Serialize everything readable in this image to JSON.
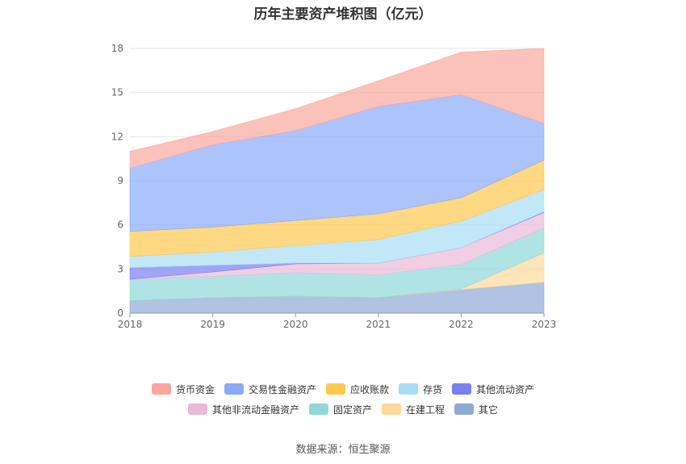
{
  "title": "历年主要资产堆积图（亿元）",
  "source": "数据来源：恒生聚源",
  "chart_data": {
    "type": "area",
    "stacked": true,
    "title": "历年主要资产堆积图（亿元）",
    "categories": [
      "2018",
      "2019",
      "2020",
      "2021",
      "2022",
      "2023"
    ],
    "ylim": [
      0,
      18
    ],
    "yticks": [
      0,
      3,
      6,
      9,
      12,
      15,
      18
    ],
    "grid": true,
    "legend_position": "bottom",
    "series": [
      {
        "name": "其它",
        "color": "#8fa9d6",
        "values": [
          0.85,
          1.05,
          1.15,
          1.05,
          1.6,
          2.1
        ]
      },
      {
        "name": "在建工程",
        "color": "#fdd99b",
        "values": [
          0.0,
          0.0,
          0.0,
          0.0,
          0.05,
          2.0
        ]
      },
      {
        "name": "固定资产",
        "color": "#8ed8d8",
        "values": [
          1.45,
          1.45,
          1.6,
          1.55,
          1.65,
          1.7
        ]
      },
      {
        "name": "其他非流动金融资产",
        "color": "#e9b9d9",
        "values": [
          0.0,
          0.3,
          0.6,
          0.8,
          1.15,
          1.05
        ]
      },
      {
        "name": "其他流动资产",
        "color": "#7b7ef0",
        "values": [
          0.8,
          0.45,
          0.05,
          0.0,
          0.0,
          0.05
        ]
      },
      {
        "name": "存货",
        "color": "#a8def5",
        "values": [
          0.75,
          0.9,
          1.2,
          1.6,
          1.8,
          1.5
        ]
      },
      {
        "name": "应收账款",
        "color": "#fdc84f",
        "values": [
          1.7,
          1.7,
          1.7,
          1.75,
          1.6,
          2.0
        ]
      },
      {
        "name": "交易性金融资产",
        "color": "#8aaaf9",
        "values": [
          4.3,
          5.6,
          6.1,
          7.3,
          7.0,
          2.5
        ]
      },
      {
        "name": "货币资金",
        "color": "#f9a79e",
        "values": [
          1.15,
          0.9,
          1.5,
          1.75,
          2.9,
          5.1
        ]
      }
    ],
    "legend_order": [
      "货币资金",
      "交易性金融资产",
      "应收账款",
      "存货",
      "其他流动资产",
      "其他非流动金融资产",
      "固定资产",
      "在建工程",
      "其它"
    ]
  }
}
